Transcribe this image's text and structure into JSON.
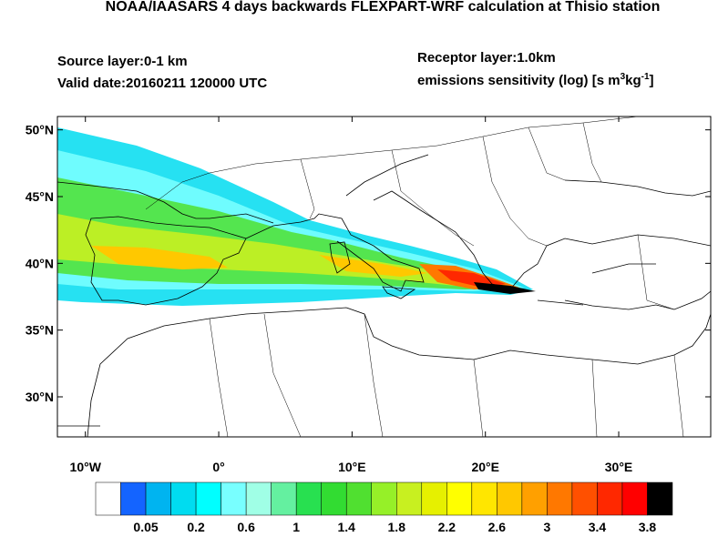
{
  "title": "NOAA/IAASARS 4 days backwards FLEXPART-WRF calculation at Thisio station",
  "source_layer": "Source layer:0-1 km",
  "valid_date": "Valid date:20160211 120000 UTC",
  "receptor_layer": "Receptor layer:1.0km",
  "colorbar_label": [
    "emissions sensitivity (log) [s m",
    "3",
    "kg",
    "-1",
    "]"
  ],
  "map": {
    "xlim": [
      -12.1,
      36.9
    ],
    "ylim": [
      27,
      51
    ],
    "xticks": [
      {
        "value": -10,
        "label": "10°W"
      },
      {
        "value": 0,
        "label": "0°"
      },
      {
        "value": 10,
        "label": "10°E"
      },
      {
        "value": 20,
        "label": "20°E"
      },
      {
        "value": 30,
        "label": "30°E"
      }
    ],
    "yticks": [
      {
        "value": 30,
        "label": "30°N"
      },
      {
        "value": 35,
        "label": "35°N"
      },
      {
        "value": 40,
        "label": "40°N"
      },
      {
        "value": 45,
        "label": "45°N"
      },
      {
        "value": 50,
        "label": "50°N"
      }
    ]
  },
  "colorbar": {
    "colors": [
      "#ffffff",
      "#1464ff",
      "#00b4f0",
      "#00dcf0",
      "#00ffff",
      "#78ffff",
      "#a0ffe6",
      "#64f0a0",
      "#28e050",
      "#32dc32",
      "#50e030",
      "#96f028",
      "#c8f020",
      "#e6f000",
      "#ffff00",
      "#ffe600",
      "#ffc800",
      "#ffa000",
      "#ff7800",
      "#ff5000",
      "#ff2800",
      "#ff0000",
      "#000000"
    ],
    "labels": [
      0.05,
      0.2,
      0.6,
      1,
      1.4,
      1.8,
      2.2,
      2.6,
      3,
      3.4,
      3.8
    ]
  }
}
